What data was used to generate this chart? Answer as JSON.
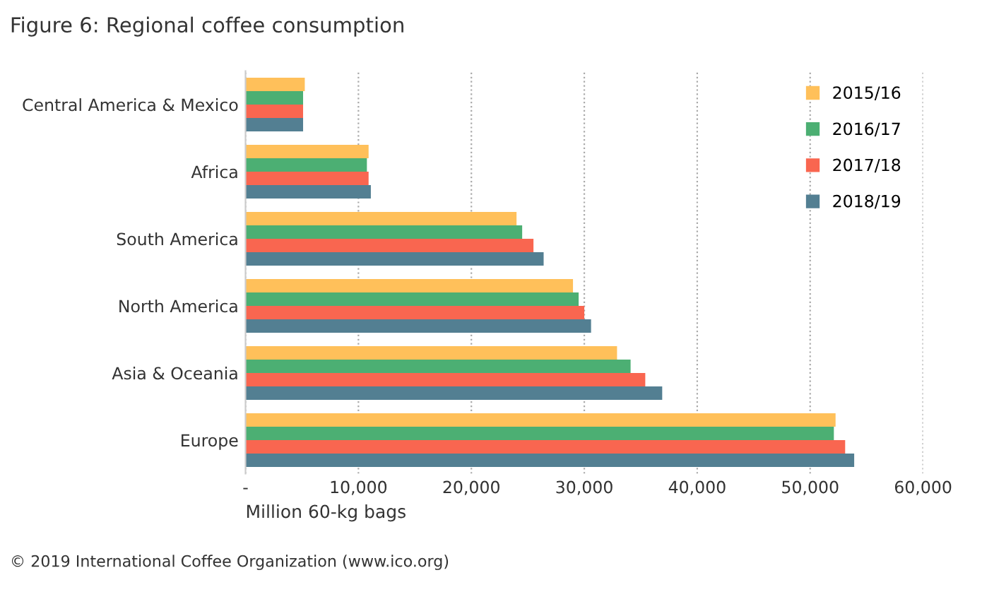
{
  "chart_data": {
    "type": "bar",
    "orientation": "horizontal",
    "title": "Figure 6: Regional coffee consumption",
    "xlabel": "Million 60-kg bags",
    "categories": [
      "Central America & Mexico",
      "Africa",
      "South America",
      "North America",
      "Asia & Oceania",
      "Europe"
    ],
    "series": [
      {
        "name": "2015/16",
        "color": "#ffc05a",
        "values": [
          5250,
          10900,
          24000,
          29000,
          32900,
          52250
        ]
      },
      {
        "name": "2016/17",
        "color": "#4caf73",
        "values": [
          5100,
          10750,
          24500,
          29500,
          34100,
          52100
        ]
      },
      {
        "name": "2017/18",
        "color": "#f96650",
        "values": [
          5100,
          10900,
          25500,
          30000,
          35400,
          53100
        ]
      },
      {
        "name": "2018/19",
        "color": "#537f92",
        "values": [
          5100,
          11100,
          26400,
          30600,
          36900,
          53900
        ]
      }
    ],
    "xlim": [
      0,
      60000
    ],
    "xticks": [
      {
        "value": 0,
        "label": "-"
      },
      {
        "value": 10000,
        "label": "10,000"
      },
      {
        "value": 20000,
        "label": "20,000"
      },
      {
        "value": 30000,
        "label": "30,000"
      },
      {
        "value": 40000,
        "label": "40,000"
      },
      {
        "value": 50000,
        "label": "50,000"
      },
      {
        "value": 60000,
        "label": "60,000"
      }
    ],
    "grid": "x",
    "legend": "right",
    "annotations": [
      "© 2019 International Coffee Organization (www.ico.org)"
    ]
  }
}
